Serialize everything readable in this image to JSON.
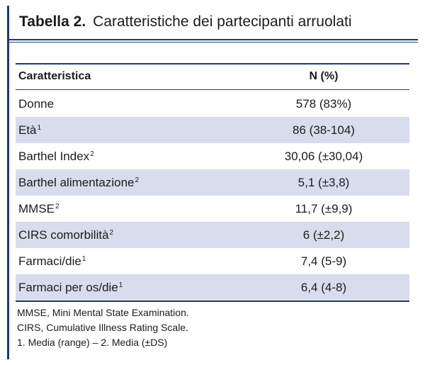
{
  "title": {
    "label": "Tabella 2.",
    "text": "Caratteristiche dei partecipanti arruolati"
  },
  "table": {
    "headers": [
      "Caratteristica",
      "N (%)"
    ],
    "rows": [
      {
        "label": "Donne",
        "sup": "",
        "value": "578 (83%)"
      },
      {
        "label": "Età",
        "sup": "1",
        "value": "86 (38-104)"
      },
      {
        "label": "Barthel Index",
        "sup": "2",
        "value": "30,06 (±30,04)"
      },
      {
        "label": "Barthel alimentazione",
        "sup": "2",
        "value": "5,1 (±3,8)"
      },
      {
        "label": "MMSE",
        "sup": "2",
        "value": "11,7 (±9,9)"
      },
      {
        "label": "CIRS comorbilità",
        "sup": "2",
        "value": "6 (±2,2)"
      },
      {
        "label": "Farmaci/die",
        "sup": "1",
        "value": "7,4 (5-9)"
      },
      {
        "label": "Farmaci per os/die",
        "sup": "1",
        "value": "6,4 (4-8)"
      }
    ]
  },
  "footnotes": [
    "MMSE, Mini Mental State Examination.",
    "CIRS, Cumulative Illness Rating Scale.",
    "1. Media (range) – 2. Media (±DS)"
  ],
  "colors": {
    "accent": "#1f3a6e",
    "row_shade": "#d9dced"
  }
}
